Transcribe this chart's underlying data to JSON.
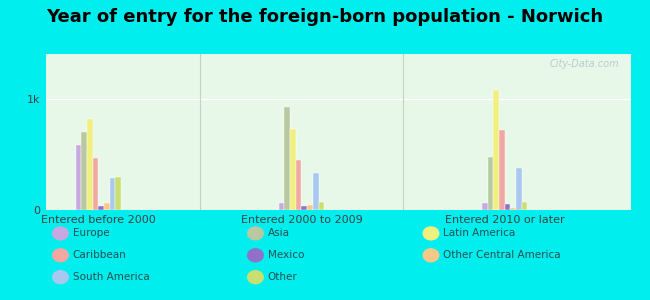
{
  "title": "Year of entry for the foreign-born population - Norwich",
  "groups": [
    "Entered before 2000",
    "Entered 2000 to 2009",
    "Entered 2010 or later"
  ],
  "series": [
    {
      "name": "Europe",
      "color": "#c8a8e0",
      "values": [
        580,
        65,
        65
      ]
    },
    {
      "name": "Asia",
      "color": "#b8c8a0",
      "values": [
        700,
        920,
        480
      ]
    },
    {
      "name": "Latin America",
      "color": "#f0f080",
      "values": [
        820,
        730,
        1080
      ]
    },
    {
      "name": "Caribbean",
      "color": "#f0a8a0",
      "values": [
        470,
        450,
        720
      ]
    },
    {
      "name": "Mexico",
      "color": "#9070c8",
      "values": [
        40,
        35,
        55
      ]
    },
    {
      "name": "Other Central America",
      "color": "#f8c888",
      "values": [
        60,
        45,
        20
      ]
    },
    {
      "name": "South America",
      "color": "#a8c8f0",
      "values": [
        290,
        330,
        380
      ]
    },
    {
      "name": "Other",
      "color": "#c8e070",
      "values": [
        300,
        70,
        70
      ]
    }
  ],
  "ylim": [
    0,
    1400
  ],
  "yticks": [
    0,
    1000
  ],
  "ytick_labels": [
    "0",
    "1k"
  ],
  "background_outer": "#00eeee",
  "background_inner_top": "#ddf0e8",
  "background_inner_bottom": "#e8f8e8",
  "title_fontsize": 13,
  "bar_width": 0.07,
  "group_positions": [
    1.0,
    3.5,
    6.0
  ],
  "xlim": [
    0.35,
    7.55
  ],
  "watermark": "City-Data.com"
}
